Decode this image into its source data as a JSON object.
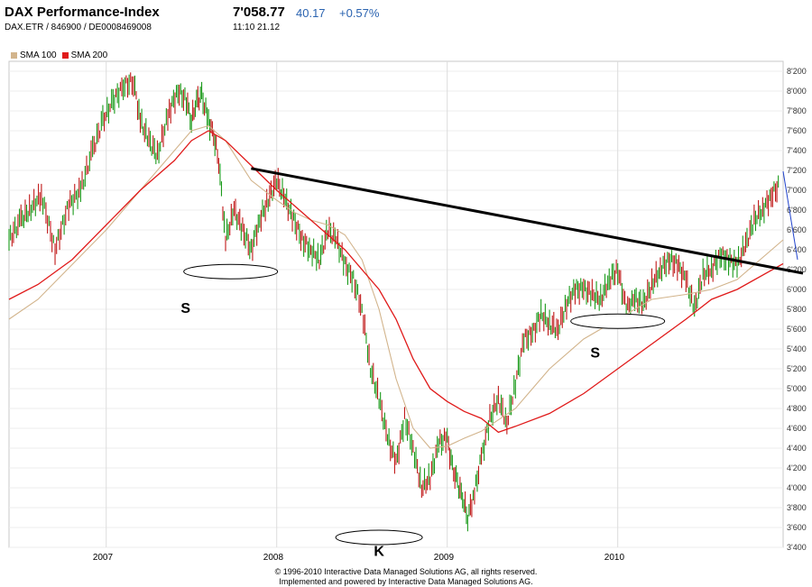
{
  "header": {
    "title": "DAX Performance-Index",
    "subtitle": "DAX.ETR  /  846900  /  DE0008469008",
    "last": "7'058.77",
    "change": "40.17",
    "change_pct": "+0.57%",
    "time": "11:10   21.12"
  },
  "footer": {
    "line1": "© 1996-2010 Interactive Data Managed Solutions AG, all rights reserved.",
    "line2": "Implemented and powered by Interactive Data Managed Solutions AG."
  },
  "colors": {
    "sma100": "#d2b48c",
    "sma200": "#e01a1a",
    "up": "#1a9a1a",
    "down": "#c01818",
    "trendline": "#000000"
  },
  "chart_data": {
    "type": "line",
    "ylim": [
      3400,
      8300
    ],
    "xlim": [
      2006.43,
      2010.97
    ],
    "yticks": [
      3400,
      3600,
      3800,
      4000,
      4200,
      4400,
      4600,
      4800,
      5000,
      5200,
      5400,
      5600,
      5800,
      6000,
      6200,
      6400,
      6600,
      6800,
      7000,
      7200,
      7400,
      7600,
      7800,
      8000,
      8200
    ],
    "ytick_labels": [
      "3'400",
      "3'600",
      "3'800",
      "4'000",
      "4'200",
      "4'400",
      "4'600",
      "4'800",
      "5'000",
      "5'200",
      "5'400",
      "5'600",
      "5'800",
      "6'000",
      "6'200",
      "6'400",
      "6'600",
      "6'800",
      "7'000",
      "7'200",
      "7'400",
      "7'600",
      "7'800",
      "8'000",
      "8'200"
    ],
    "year_boundaries": [
      2007,
      2008,
      2009,
      2010
    ],
    "xtick_labels": [
      {
        "label": "2007",
        "x": 2006.98
      },
      {
        "label": "2008",
        "x": 2007.98
      },
      {
        "label": "2009",
        "x": 2008.98
      },
      {
        "label": "2010",
        "x": 2009.98
      }
    ],
    "series": [
      {
        "name": "SMA 100",
        "color": "#d2b48c",
        "x": [
          2006.43,
          2006.6,
          2006.8,
          2007.0,
          2007.2,
          2007.4,
          2007.5,
          2007.6,
          2007.7,
          2007.85,
          2008.0,
          2008.1,
          2008.2,
          2008.3,
          2008.4,
          2008.5,
          2008.6,
          2008.7,
          2008.8,
          2008.9,
          2009.0,
          2009.1,
          2009.2,
          2009.4,
          2009.5,
          2009.6,
          2009.8,
          2010.0,
          2010.2,
          2010.4,
          2010.55,
          2010.7,
          2010.97
        ],
        "values": [
          5700,
          5900,
          6250,
          6600,
          7000,
          7400,
          7600,
          7650,
          7500,
          7100,
          6900,
          6780,
          6700,
          6650,
          6550,
          6300,
          5800,
          5100,
          4600,
          4400,
          4420,
          4500,
          4570,
          4800,
          5000,
          5200,
          5500,
          5700,
          5900,
          5950,
          6000,
          6100,
          6500
        ]
      },
      {
        "name": "SMA 200",
        "color": "#e01a1a",
        "x": [
          2006.43,
          2006.6,
          2006.8,
          2007.0,
          2007.2,
          2007.4,
          2007.5,
          2007.6,
          2007.7,
          2007.85,
          2008.0,
          2008.2,
          2008.4,
          2008.6,
          2008.7,
          2008.8,
          2008.9,
          2009.0,
          2009.1,
          2009.2,
          2009.3,
          2009.4,
          2009.6,
          2009.8,
          2010.0,
          2010.2,
          2010.4,
          2010.55,
          2010.7,
          2010.97
        ],
        "values": [
          5900,
          6050,
          6300,
          6650,
          7000,
          7300,
          7500,
          7600,
          7500,
          7250,
          7000,
          6700,
          6400,
          6000,
          5700,
          5300,
          5000,
          4870,
          4770,
          4700,
          4560,
          4620,
          4750,
          4950,
          5200,
          5450,
          5700,
          5900,
          6000,
          6260
        ]
      },
      {
        "name": "DAX",
        "x": [
          2006.43,
          2006.5,
          2006.55,
          2006.62,
          2006.7,
          2006.78,
          2006.85,
          2006.92,
          2006.98,
          2007.04,
          2007.1,
          2007.16,
          2007.2,
          2007.25,
          2007.3,
          2007.37,
          2007.42,
          2007.47,
          2007.5,
          2007.53,
          2007.56,
          2007.6,
          2007.63,
          2007.66,
          2007.7,
          2007.75,
          2007.8,
          2007.85,
          2007.9,
          2007.95,
          2008.0,
          2008.05,
          2008.1,
          2008.15,
          2008.2,
          2008.25,
          2008.3,
          2008.35,
          2008.4,
          2008.45,
          2008.5,
          2008.55,
          2008.6,
          2008.65,
          2008.7,
          2008.75,
          2008.8,
          2008.85,
          2008.9,
          2008.95,
          2009.0,
          2009.03,
          2009.06,
          2009.09,
          2009.12,
          2009.16,
          2009.2,
          2009.25,
          2009.3,
          2009.35,
          2009.4,
          2009.45,
          2009.5,
          2009.55,
          2009.6,
          2009.65,
          2009.7,
          2009.75,
          2009.8,
          2009.85,
          2009.9,
          2009.95,
          2010.0,
          2010.05,
          2010.1,
          2010.15,
          2010.2,
          2010.25,
          2010.3,
          2010.35,
          2010.4,
          2010.45,
          2010.5,
          2010.55,
          2010.6,
          2010.65,
          2010.7,
          2010.75,
          2010.8,
          2010.85,
          2010.9,
          2010.95
        ],
        "values": [
          6500,
          6700,
          6800,
          6950,
          6400,
          6850,
          7000,
          7400,
          7700,
          7900,
          8050,
          8100,
          7700,
          7500,
          7350,
          7800,
          8000,
          7900,
          7700,
          7900,
          7950,
          7700,
          7550,
          7300,
          6500,
          6800,
          6600,
          6400,
          6700,
          6900,
          7100,
          6900,
          6700,
          6500,
          6400,
          6300,
          6600,
          6500,
          6250,
          6100,
          5800,
          5200,
          4900,
          4500,
          4250,
          4700,
          4400,
          4000,
          4100,
          4450,
          4500,
          4200,
          4050,
          3900,
          3700,
          3950,
          4300,
          4700,
          4900,
          4650,
          5050,
          5500,
          5550,
          5750,
          5650,
          5600,
          5850,
          6000,
          6000,
          5950,
          5900,
          6100,
          6200,
          5800,
          5900,
          5850,
          6050,
          6200,
          6300,
          6250,
          6100,
          5800,
          6150,
          6200,
          6350,
          6300,
          6250,
          6450,
          6700,
          6800,
          6950,
          7050
        ]
      }
    ],
    "annotations": [
      {
        "label": "S",
        "x": 2007.73,
        "y": 6180,
        "text_y": 5800
      },
      {
        "label": "S",
        "x": 2010.0,
        "y": 5680,
        "text_y": 5350
      },
      {
        "label": "K",
        "x": 2008.6,
        "y": 3500,
        "text_y": 3350
      }
    ],
    "trendline": {
      "x": [
        2007.85,
        2010.97
      ],
      "y": [
        7220,
        6200
      ]
    }
  }
}
